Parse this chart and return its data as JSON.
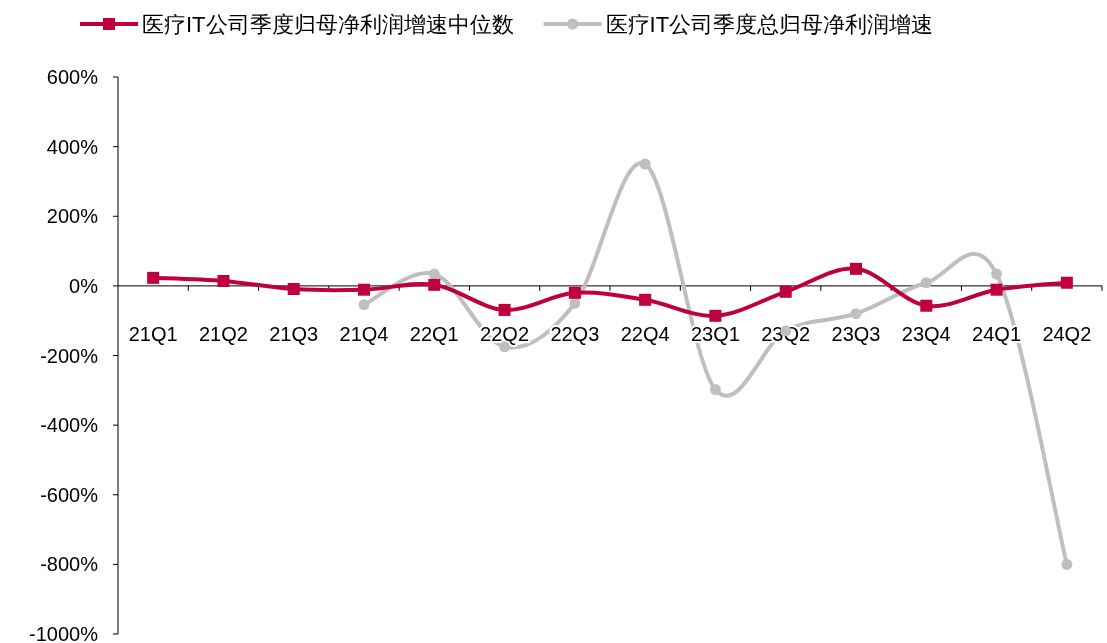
{
  "chart_data": {
    "type": "line",
    "categories": [
      "21Q1",
      "21Q2",
      "21Q3",
      "21Q4",
      "22Q1",
      "22Q2",
      "22Q3",
      "22Q4",
      "23Q1",
      "23Q2",
      "23Q3",
      "23Q4",
      "24Q1",
      "24Q2"
    ],
    "series": [
      {
        "name": "医疗IT公司季度归母净利润增速中位数",
        "color": "#c0003c",
        "marker": "square",
        "values": [
          23,
          14,
          -9,
          -11,
          3,
          -69,
          -20,
          -40,
          -86,
          -17,
          49,
          -57,
          -11,
          9
        ]
      },
      {
        "name": "医疗IT公司季度总归母净利润增速",
        "color": "#bfbfbf",
        "marker": "circle",
        "values": [
          null,
          null,
          null,
          -54,
          34,
          -175,
          -50,
          350,
          -298,
          -129,
          -80,
          9,
          34,
          -800
        ]
      }
    ],
    "ylim": [
      -1000,
      600
    ],
    "yticks": [
      {
        "value": 600,
        "label": "600%"
      },
      {
        "value": 400,
        "label": "400%"
      },
      {
        "value": 200,
        "label": "200%"
      },
      {
        "value": 0,
        "label": "0%"
      },
      {
        "value": -200,
        "label": "-200%"
      },
      {
        "value": -400,
        "label": "-400%"
      },
      {
        "value": -600,
        "label": "-600%"
      },
      {
        "value": -800,
        "label": "-800%"
      },
      {
        "value": -1000,
        "label": "-1000%"
      }
    ],
    "legend": "top",
    "grid": false,
    "line_style": "solid"
  }
}
